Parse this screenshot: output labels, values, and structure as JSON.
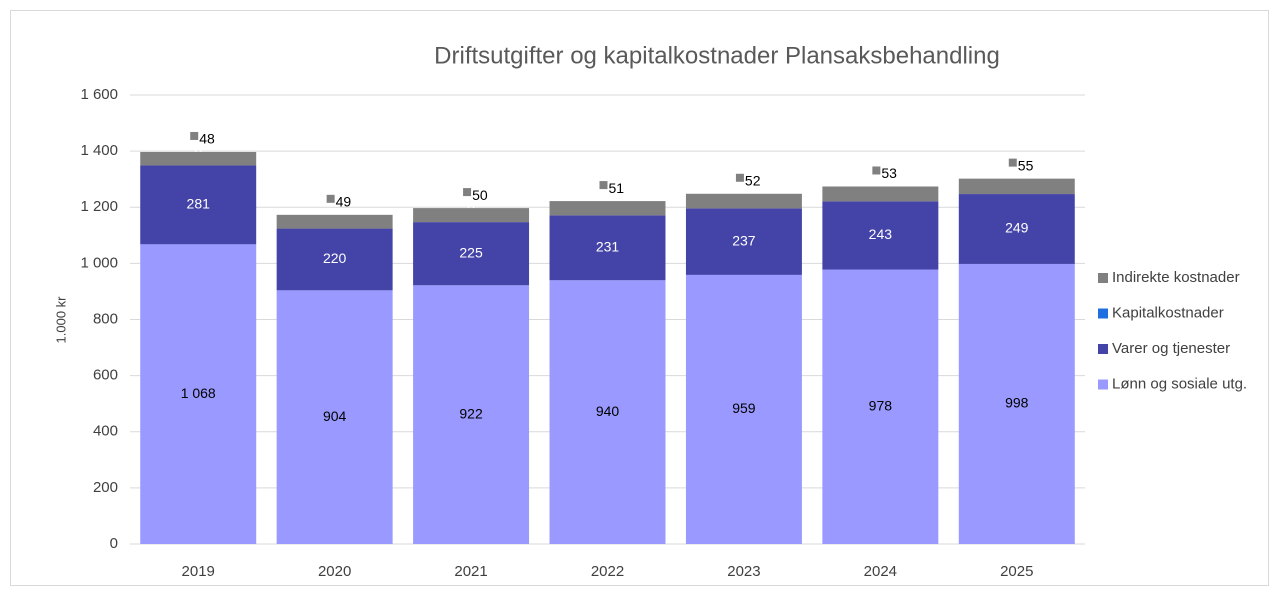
{
  "chart_data": {
    "type": "stacked_bar",
    "title": "Driftsutgifter og kapitalkostnader Plansaksbehandling",
    "y_label": "1.000 kr",
    "categories": [
      "2019",
      "2020",
      "2021",
      "2022",
      "2023",
      "2024",
      "2025"
    ],
    "series": [
      {
        "name": "Lønn og sosiale utg.",
        "color": "#9999ff",
        "values": [
          1068,
          904,
          922,
          940,
          959,
          978,
          998
        ],
        "value_labels": [
          "1 068",
          "904",
          "922",
          "940",
          "959",
          "978",
          "998"
        ]
      },
      {
        "name": "Varer og tjenester",
        "color": "#4343a8",
        "values": [
          281,
          220,
          225,
          231,
          237,
          243,
          249
        ]
      },
      {
        "name": "Kapitalkostnader",
        "color": "#1f6fe0",
        "values": [
          0,
          0,
          0,
          0,
          0,
          0,
          0
        ]
      },
      {
        "name": "Indirekte kostnader",
        "color": "#808080",
        "values": [
          48,
          49,
          50,
          51,
          52,
          53,
          55
        ]
      }
    ],
    "ylim": [
      0,
      1600
    ],
    "yticks": [
      0,
      200,
      400,
      600,
      800,
      {
        "value": 1000,
        "label": "1 000"
      },
      {
        "value": 1200,
        "label": "1 200"
      },
      {
        "value": 1400,
        "label": "1 400"
      },
      {
        "value": 1600,
        "label": "1 600"
      }
    ],
    "grid": true,
    "legend": "right"
  }
}
